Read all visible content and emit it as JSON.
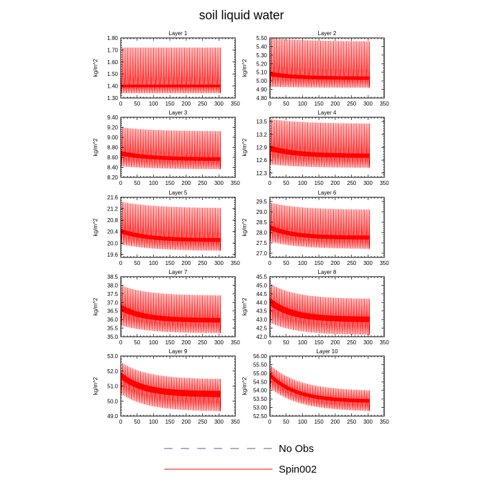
{
  "title": "soil liquid water",
  "legend": {
    "placement": "bottom-center",
    "entries": [
      {
        "label": "No Obs",
        "color": "#5a5aa0",
        "style": "dashed"
      },
      {
        "label": "Spin002",
        "color": "#ff0000",
        "style": "solid"
      }
    ]
  },
  "chart_data": [
    {
      "type": "line",
      "title": "Layer 1",
      "ylabel": "kg/m^2",
      "xlim": [
        0,
        350
      ],
      "ylim": [
        1.3,
        1.8
      ],
      "xticks": [
        0,
        50,
        100,
        150,
        200,
        250,
        300,
        350
      ],
      "yticks": [
        1.3,
        1.4,
        1.5,
        1.6,
        1.7,
        1.8
      ],
      "ytick_labels": [
        "1.30",
        "1.40",
        "1.50",
        "1.60",
        "1.70",
        "1.80"
      ],
      "series": [
        {
          "name": "Spin002",
          "x_range": [
            0,
            305
          ],
          "oscillation_period": 5,
          "upper_envelope": {
            "start": 1.72,
            "end": 1.72,
            "tau": 100
          },
          "lower_envelope": {
            "start": 1.34,
            "end": 1.34,
            "tau": 100
          },
          "center": {
            "start": 1.4,
            "end": 1.4,
            "tau": 100
          }
        }
      ]
    },
    {
      "type": "line",
      "title": "Layer 2",
      "ylabel": "kg/m^2",
      "xlim": [
        0,
        350
      ],
      "ylim": [
        4.8,
        5.5
      ],
      "xticks": [
        0,
        50,
        100,
        150,
        200,
        250,
        300,
        350
      ],
      "yticks": [
        4.8,
        4.9,
        5.0,
        5.1,
        5.2,
        5.3,
        5.4,
        5.5
      ],
      "ytick_labels": [
        "4.80",
        "4.90",
        "5.00",
        "5.10",
        "5.20",
        "5.30",
        "5.40",
        "5.50"
      ],
      "series": [
        {
          "name": "Spin002",
          "x_range": [
            0,
            305
          ],
          "oscillation_period": 5,
          "upper_envelope": {
            "start": 5.5,
            "end": 5.46,
            "tau": 100
          },
          "lower_envelope": {
            "start": 4.93,
            "end": 4.92,
            "tau": 100
          },
          "center": {
            "start": 5.08,
            "end": 5.03,
            "tau": 80
          }
        }
      ]
    },
    {
      "type": "line",
      "title": "Layer 3",
      "ylabel": "kg/m^2",
      "xlim": [
        0,
        350
      ],
      "ylim": [
        8.2,
        9.4
      ],
      "xticks": [
        0,
        50,
        100,
        150,
        200,
        250,
        300,
        350
      ],
      "yticks": [
        8.2,
        8.4,
        8.6,
        8.8,
        9.0,
        9.2,
        9.4
      ],
      "ytick_labels": [
        "8.20",
        "8.40",
        "8.60",
        "8.80",
        "9.00",
        "9.20",
        "9.40"
      ],
      "series": [
        {
          "name": "Spin002",
          "x_range": [
            0,
            305
          ],
          "oscillation_period": 5,
          "upper_envelope": {
            "start": 9.2,
            "end": 9.12,
            "tau": 100
          },
          "lower_envelope": {
            "start": 8.42,
            "end": 8.36,
            "tau": 100
          },
          "center": {
            "start": 8.68,
            "end": 8.56,
            "tau": 90
          }
        }
      ]
    },
    {
      "type": "line",
      "title": "Layer 4",
      "ylabel": "kg/m^2",
      "xlim": [
        0,
        350
      ],
      "ylim": [
        12.2,
        13.6
      ],
      "xticks": [
        0,
        50,
        100,
        150,
        200,
        250,
        300,
        350
      ],
      "yticks": [
        12.3,
        12.6,
        12.9,
        13.2,
        13.5
      ],
      "ytick_labels": [
        "12.3",
        "12.6",
        "12.9",
        "13.2",
        "13.5"
      ],
      "series": [
        {
          "name": "Spin002",
          "x_range": [
            0,
            305
          ],
          "oscillation_period": 5,
          "upper_envelope": {
            "start": 13.56,
            "end": 13.45,
            "tau": 100
          },
          "lower_envelope": {
            "start": 12.5,
            "end": 12.42,
            "tau": 100
          },
          "center": {
            "start": 12.88,
            "end": 12.7,
            "tau": 80
          }
        }
      ]
    },
    {
      "type": "line",
      "title": "Layer 5",
      "ylabel": "kg/m^2",
      "xlim": [
        0,
        350
      ],
      "ylim": [
        19.5,
        21.6
      ],
      "xticks": [
        0,
        50,
        100,
        150,
        200,
        250,
        300,
        350
      ],
      "yticks": [
        19.6,
        20.0,
        20.4,
        20.8,
        21.2,
        21.6
      ],
      "ytick_labels": [
        "19.6",
        "20.0",
        "20.4",
        "20.8",
        "21.2",
        "21.6"
      ],
      "series": [
        {
          "name": "Spin002",
          "x_range": [
            0,
            305
          ],
          "oscillation_period": 5,
          "upper_envelope": {
            "start": 21.45,
            "end": 21.22,
            "tau": 100
          },
          "lower_envelope": {
            "start": 19.95,
            "end": 19.72,
            "tau": 100
          },
          "center": {
            "start": 20.42,
            "end": 20.1,
            "tau": 80
          }
        }
      ]
    },
    {
      "type": "line",
      "title": "Layer 6",
      "ylabel": "kg/m^2",
      "xlim": [
        0,
        350
      ],
      "ylim": [
        26.8,
        29.7
      ],
      "xticks": [
        0,
        50,
        100,
        150,
        200,
        250,
        300,
        350
      ],
      "yticks": [
        27.0,
        27.5,
        28.0,
        28.5,
        29.0,
        29.5
      ],
      "ytick_labels": [
        "27.0",
        "27.5",
        "28.0",
        "28.5",
        "29.0",
        "29.5"
      ],
      "series": [
        {
          "name": "Spin002",
          "x_range": [
            0,
            305
          ],
          "oscillation_period": 5,
          "upper_envelope": {
            "start": 29.45,
            "end": 29.1,
            "tau": 90
          },
          "lower_envelope": {
            "start": 27.55,
            "end": 27.2,
            "tau": 90
          },
          "center": {
            "start": 28.25,
            "end": 27.75,
            "tau": 70
          }
        }
      ]
    },
    {
      "type": "line",
      "title": "Layer 7",
      "ylabel": "kg/m^2",
      "xlim": [
        0,
        350
      ],
      "ylim": [
        35.0,
        38.5
      ],
      "xticks": [
        0,
        50,
        100,
        150,
        200,
        250,
        300,
        350
      ],
      "yticks": [
        35.0,
        35.5,
        36.0,
        36.5,
        37.0,
        37.5,
        38.0,
        38.5
      ],
      "ytick_labels": [
        "35.0",
        "35.5",
        "36.0",
        "36.5",
        "37.0",
        "37.5",
        "38.0",
        "38.5"
      ],
      "series": [
        {
          "name": "Spin002",
          "x_range": [
            0,
            305
          ],
          "oscillation_period": 5,
          "upper_envelope": {
            "start": 38.0,
            "end": 37.4,
            "tau": 80
          },
          "lower_envelope": {
            "start": 35.65,
            "end": 35.2,
            "tau": 80
          },
          "center": {
            "start": 36.7,
            "end": 35.95,
            "tau": 70
          }
        }
      ]
    },
    {
      "type": "line",
      "title": "Layer 8",
      "ylabel": "kg/m^2",
      "xlim": [
        0,
        350
      ],
      "ylim": [
        42.0,
        45.5
      ],
      "xticks": [
        0,
        50,
        100,
        150,
        200,
        250,
        300,
        350
      ],
      "yticks": [
        42.0,
        42.5,
        43.0,
        43.5,
        44.0,
        44.5,
        45.0,
        45.5
      ],
      "ytick_labels": [
        "42.0",
        "42.5",
        "43.0",
        "43.5",
        "44.0",
        "44.5",
        "45.0",
        "45.5"
      ],
      "series": [
        {
          "name": "Spin002",
          "x_range": [
            0,
            305
          ],
          "oscillation_period": 5,
          "upper_envelope": {
            "start": 45.1,
            "end": 44.2,
            "tau": 80
          },
          "lower_envelope": {
            "start": 42.8,
            "end": 42.1,
            "tau": 80
          },
          "center": {
            "start": 44.05,
            "end": 43.0,
            "tau": 70
          }
        }
      ]
    },
    {
      "type": "line",
      "title": "Layer 9",
      "ylabel": "kg/m^2",
      "xlim": [
        0,
        350
      ],
      "ylim": [
        49.0,
        53.0
      ],
      "xticks": [
        0,
        50,
        100,
        150,
        200,
        250,
        300,
        350
      ],
      "yticks": [
        49.0,
        50.0,
        51.0,
        52.0,
        53.0
      ],
      "ytick_labels": [
        "49.0",
        "50.0",
        "51.0",
        "52.0",
        "53.0"
      ],
      "series": [
        {
          "name": "Spin002",
          "x_range": [
            0,
            305
          ],
          "oscillation_period": 5,
          "upper_envelope": {
            "start": 52.6,
            "end": 51.45,
            "tau": 80
          },
          "lower_envelope": {
            "start": 50.45,
            "end": 49.3,
            "tau": 80
          },
          "center": {
            "start": 51.7,
            "end": 50.45,
            "tau": 70
          }
        }
      ]
    },
    {
      "type": "line",
      "title": "Layer 10",
      "ylabel": "kg/m^2",
      "xlim": [
        0,
        350
      ],
      "ylim": [
        52.5,
        56.0
      ],
      "xticks": [
        0,
        50,
        100,
        150,
        200,
        250,
        300,
        350
      ],
      "yticks": [
        52.5,
        53.0,
        53.5,
        54.0,
        54.5,
        55.0,
        55.5,
        56.0
      ],
      "ytick_labels": [
        "52.50",
        "53.00",
        "53.50",
        "54.00",
        "54.50",
        "55.00",
        "55.50",
        "56.00"
      ],
      "series": [
        {
          "name": "Spin002",
          "x_range": [
            0,
            305
          ],
          "oscillation_period": 5,
          "upper_envelope": {
            "start": 55.5,
            "end": 53.95,
            "tau": 90
          },
          "lower_envelope": {
            "start": 54.1,
            "end": 52.75,
            "tau": 90
          },
          "center": {
            "start": 54.9,
            "end": 53.35,
            "tau": 80
          }
        }
      ]
    }
  ]
}
